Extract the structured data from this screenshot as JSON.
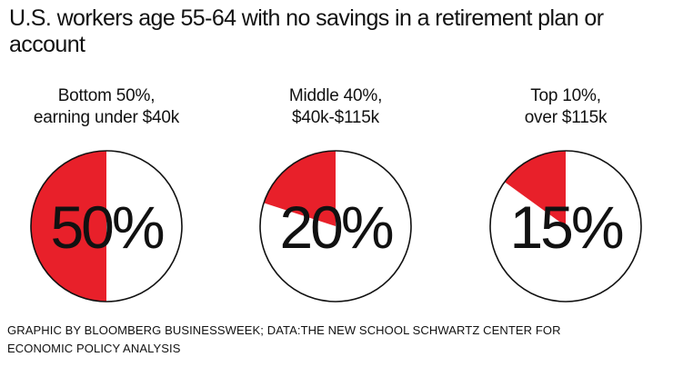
{
  "title": "U.S. workers age 55-64 with no savings in a retirement plan or account",
  "colors": {
    "accent": "#e8202a",
    "outline": "#111111",
    "background": "#ffffff"
  },
  "chart_data": {
    "type": "pie",
    "title": "U.S. workers age 55-64 with no savings in a retirement plan or account",
    "series": [
      {
        "name": "Bottom 50%, earning under $40k",
        "label_lines": [
          "Bottom 50%,",
          "earning under $40k"
        ],
        "value": 50,
        "value_label": "50%"
      },
      {
        "name": "Middle 40%, $40k-$115k",
        "label_lines": [
          "Middle 40%,",
          "$40k-$115k"
        ],
        "value": 20,
        "value_label": "20%"
      },
      {
        "name": "Top 10%, over $115k",
        "label_lines": [
          "Top 10%,",
          "over $115k"
        ],
        "value": 15,
        "value_label": "15%"
      }
    ]
  },
  "footer": {
    "line1": "GRAPHIC BY BLOOMBERG BUSINESSWEEK; DATA:THE NEW SCHOOL SCHWARTZ CENTER FOR",
    "line2": "ECONOMIC POLICY ANALYSIS"
  }
}
